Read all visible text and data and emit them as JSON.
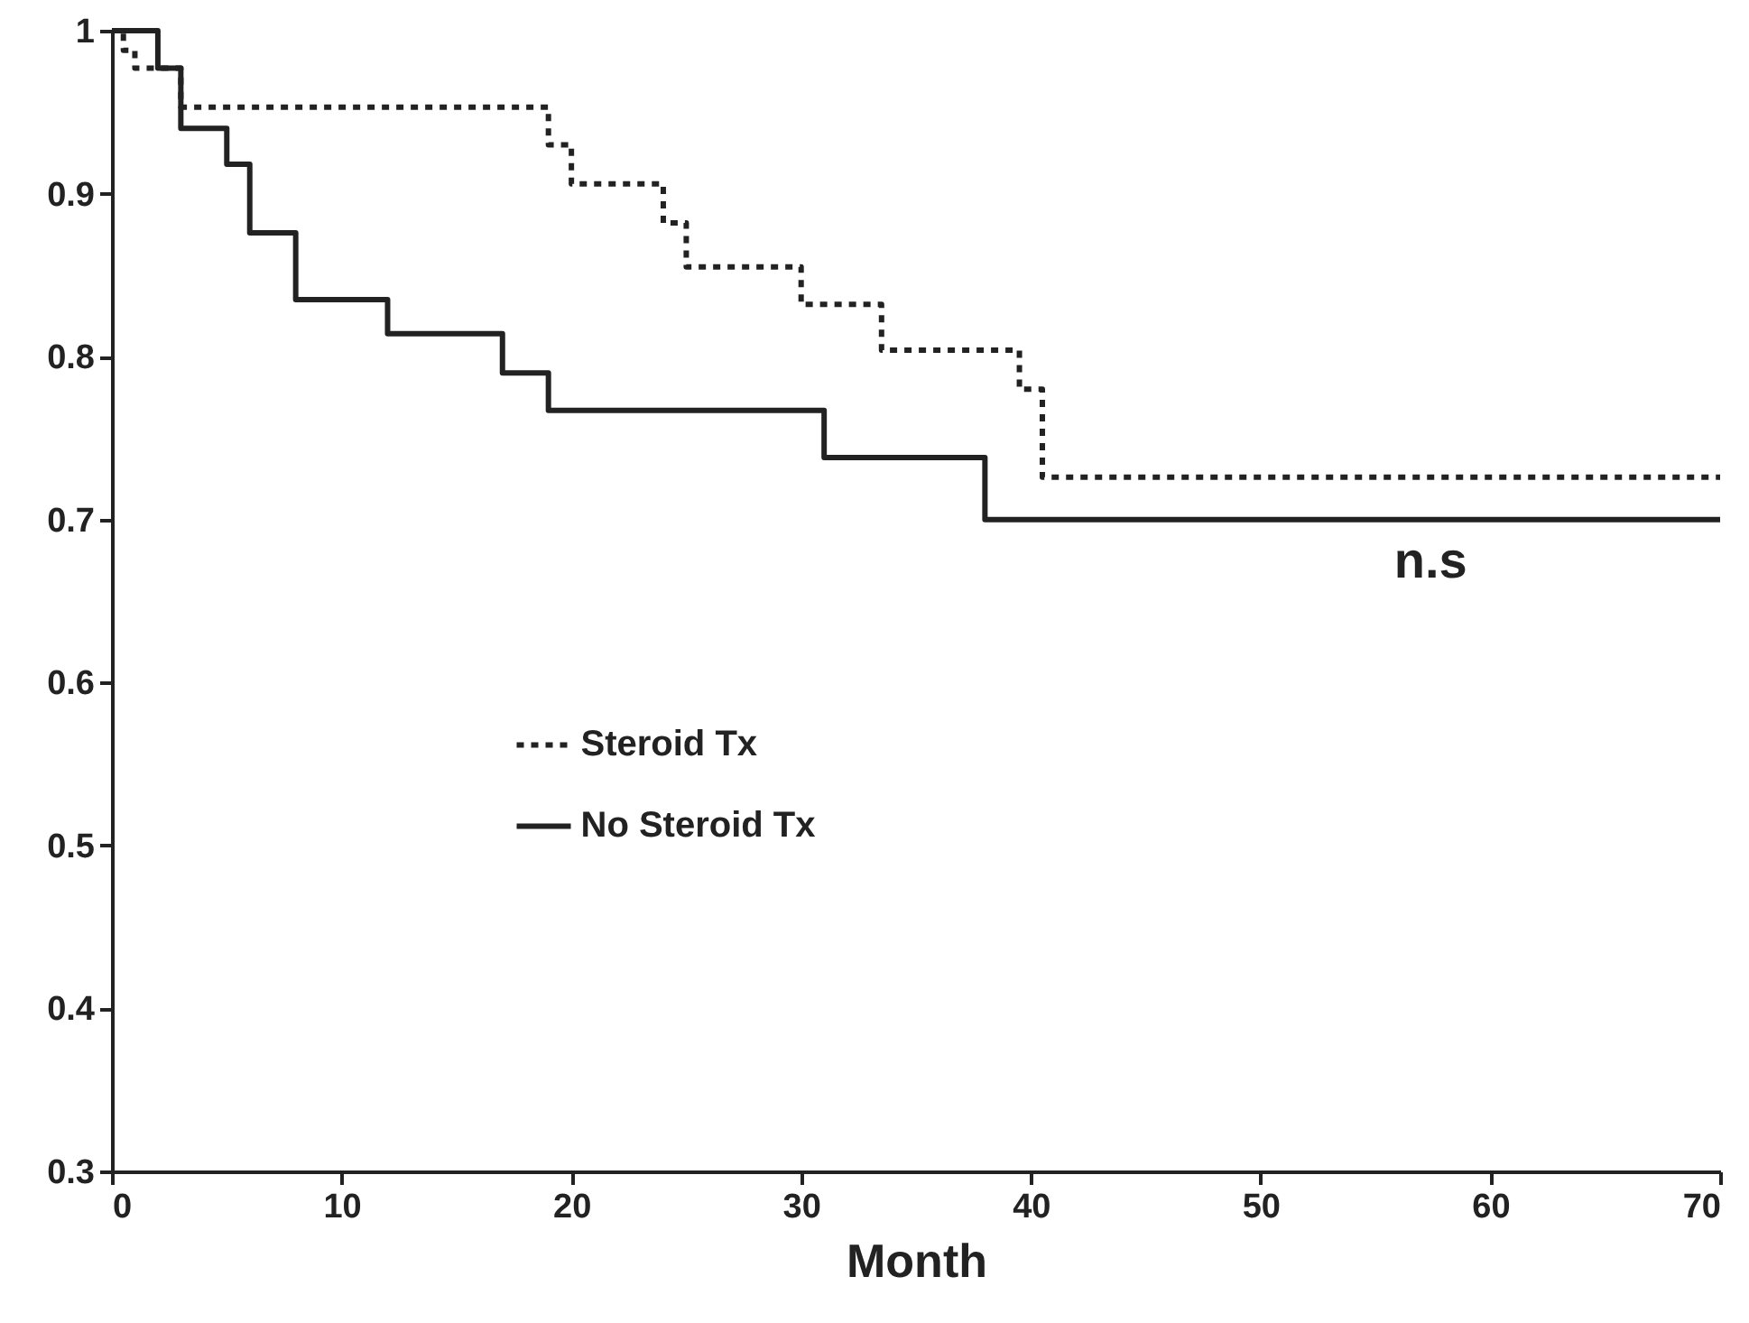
{
  "chart_data": {
    "type": "step",
    "xlabel": "Month",
    "xlim": [
      0,
      70
    ],
    "xticks": [
      0,
      10,
      20,
      30,
      40,
      50,
      60,
      70
    ],
    "ylim": [
      0.3,
      1
    ],
    "yticks": [
      0.3,
      0.4,
      0.5,
      0.6,
      0.7,
      0.8,
      0.9,
      {
        "value": 1,
        "label": "1"
      }
    ],
    "grid": false,
    "legend": "center left",
    "series": [
      {
        "name": "Steroid Tx",
        "color": "#222222",
        "line_style": "dotted",
        "x": [
          0,
          0.5,
          1,
          3,
          19,
          20,
          24,
          25,
          30,
          33.5,
          39.5,
          40.5,
          70
        ],
        "values": [
          1,
          0.988,
          0.977,
          0.953,
          0.93,
          0.906,
          0.882,
          0.855,
          0.832,
          0.804,
          0.78,
          0.726,
          0.726
        ]
      },
      {
        "name": "No Steroid Tx",
        "color": "#222222",
        "line_style": "solid",
        "x": [
          0,
          2,
          3,
          5,
          6,
          8,
          12,
          17,
          19,
          31,
          38,
          70
        ],
        "values": [
          1,
          0.977,
          0.94,
          0.918,
          0.876,
          0.835,
          0.814,
          0.79,
          0.767,
          0.738,
          0.7,
          0.7
        ]
      }
    ],
    "annotations": [
      "n.s"
    ]
  }
}
